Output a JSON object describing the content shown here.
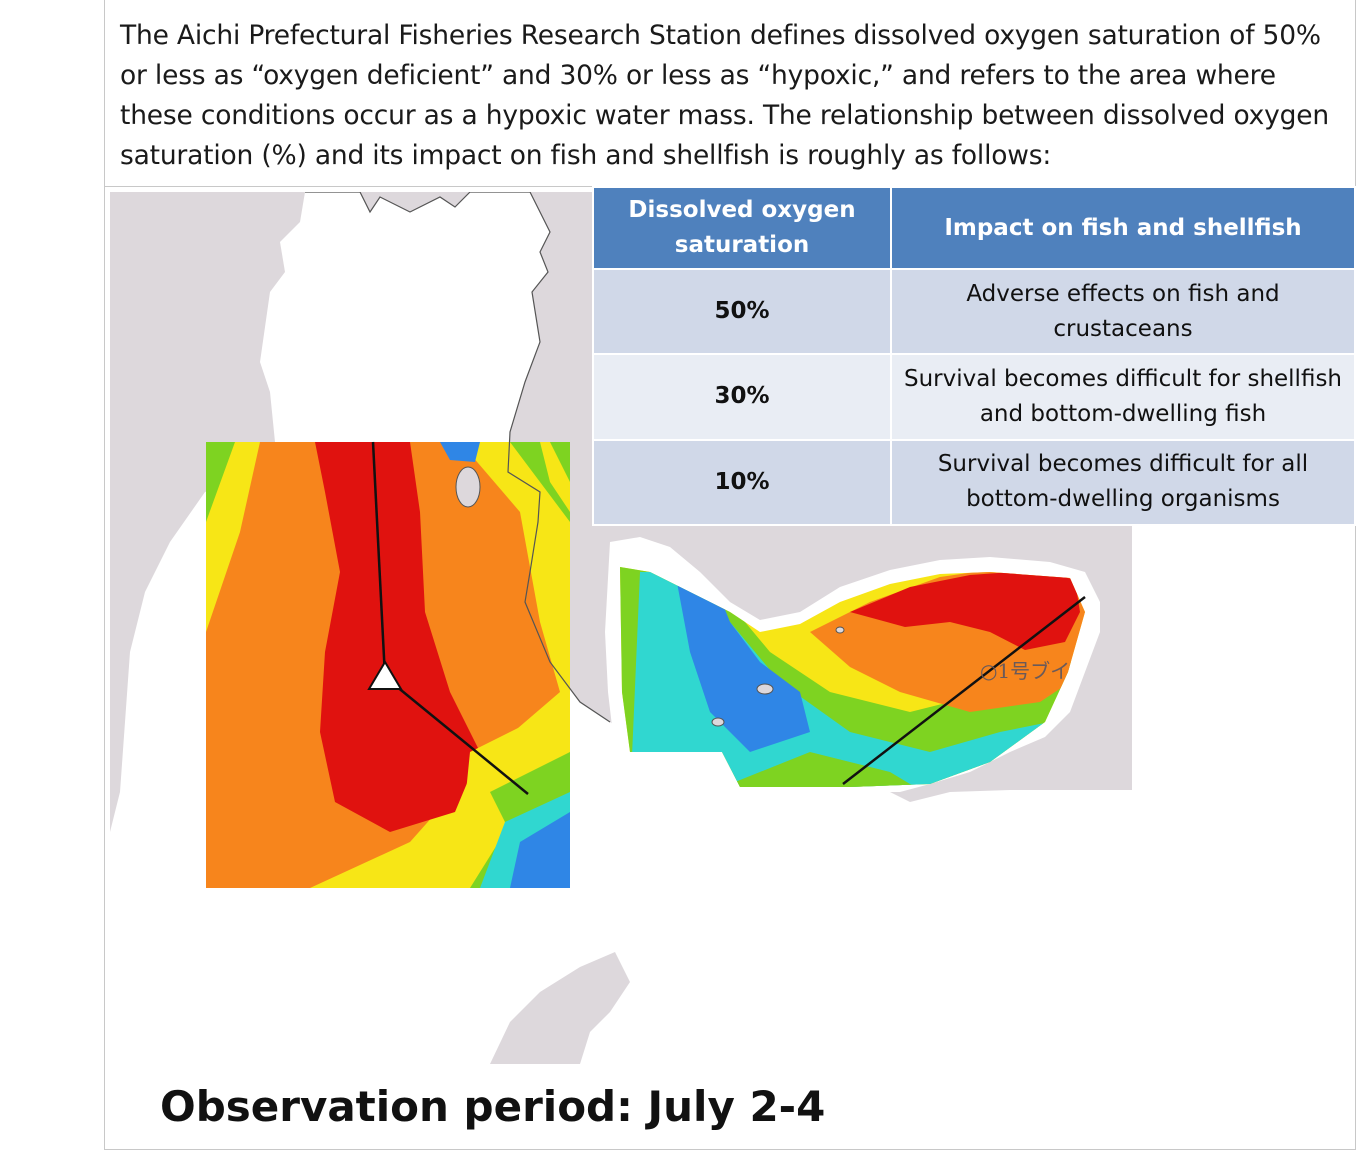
{
  "intro": {
    "text": "The Aichi Prefectural Fisheries Research Station defines dissolved oxygen saturation of 50% or less as “oxygen deficient” and 30% or less as “hypoxic,” and refers to the area where these conditions occur as a hypoxic water mass. The relationship between dissolved oxygen saturation (%) and its impact on fish and shellfish is roughly as follows:"
  },
  "table": {
    "headers": [
      "Dissolved oxygen saturation",
      "Impact on fish and shellfish"
    ],
    "rows": [
      {
        "level": "50%",
        "impact": "Adverse effects on fish and crustaceans"
      },
      {
        "level": "30%",
        "impact": "Survival becomes difficult for shellfish and bottom-dwelling fish"
      },
      {
        "level": "10%",
        "impact": "Survival becomes difficult for all bottom-dwelling organisms"
      }
    ]
  },
  "map": {
    "buoy_label": "○1号ブイ",
    "colors": {
      "land": "#ddd8dc",
      "water": "#ffffff",
      "red": "#e0120f",
      "orange": "#f7851c",
      "yellow": "#f7e616",
      "green": "#7ed321",
      "cyan": "#30d7d0",
      "blue": "#2f86e6"
    }
  },
  "footer": {
    "period": "Observation period: July 2-4"
  }
}
